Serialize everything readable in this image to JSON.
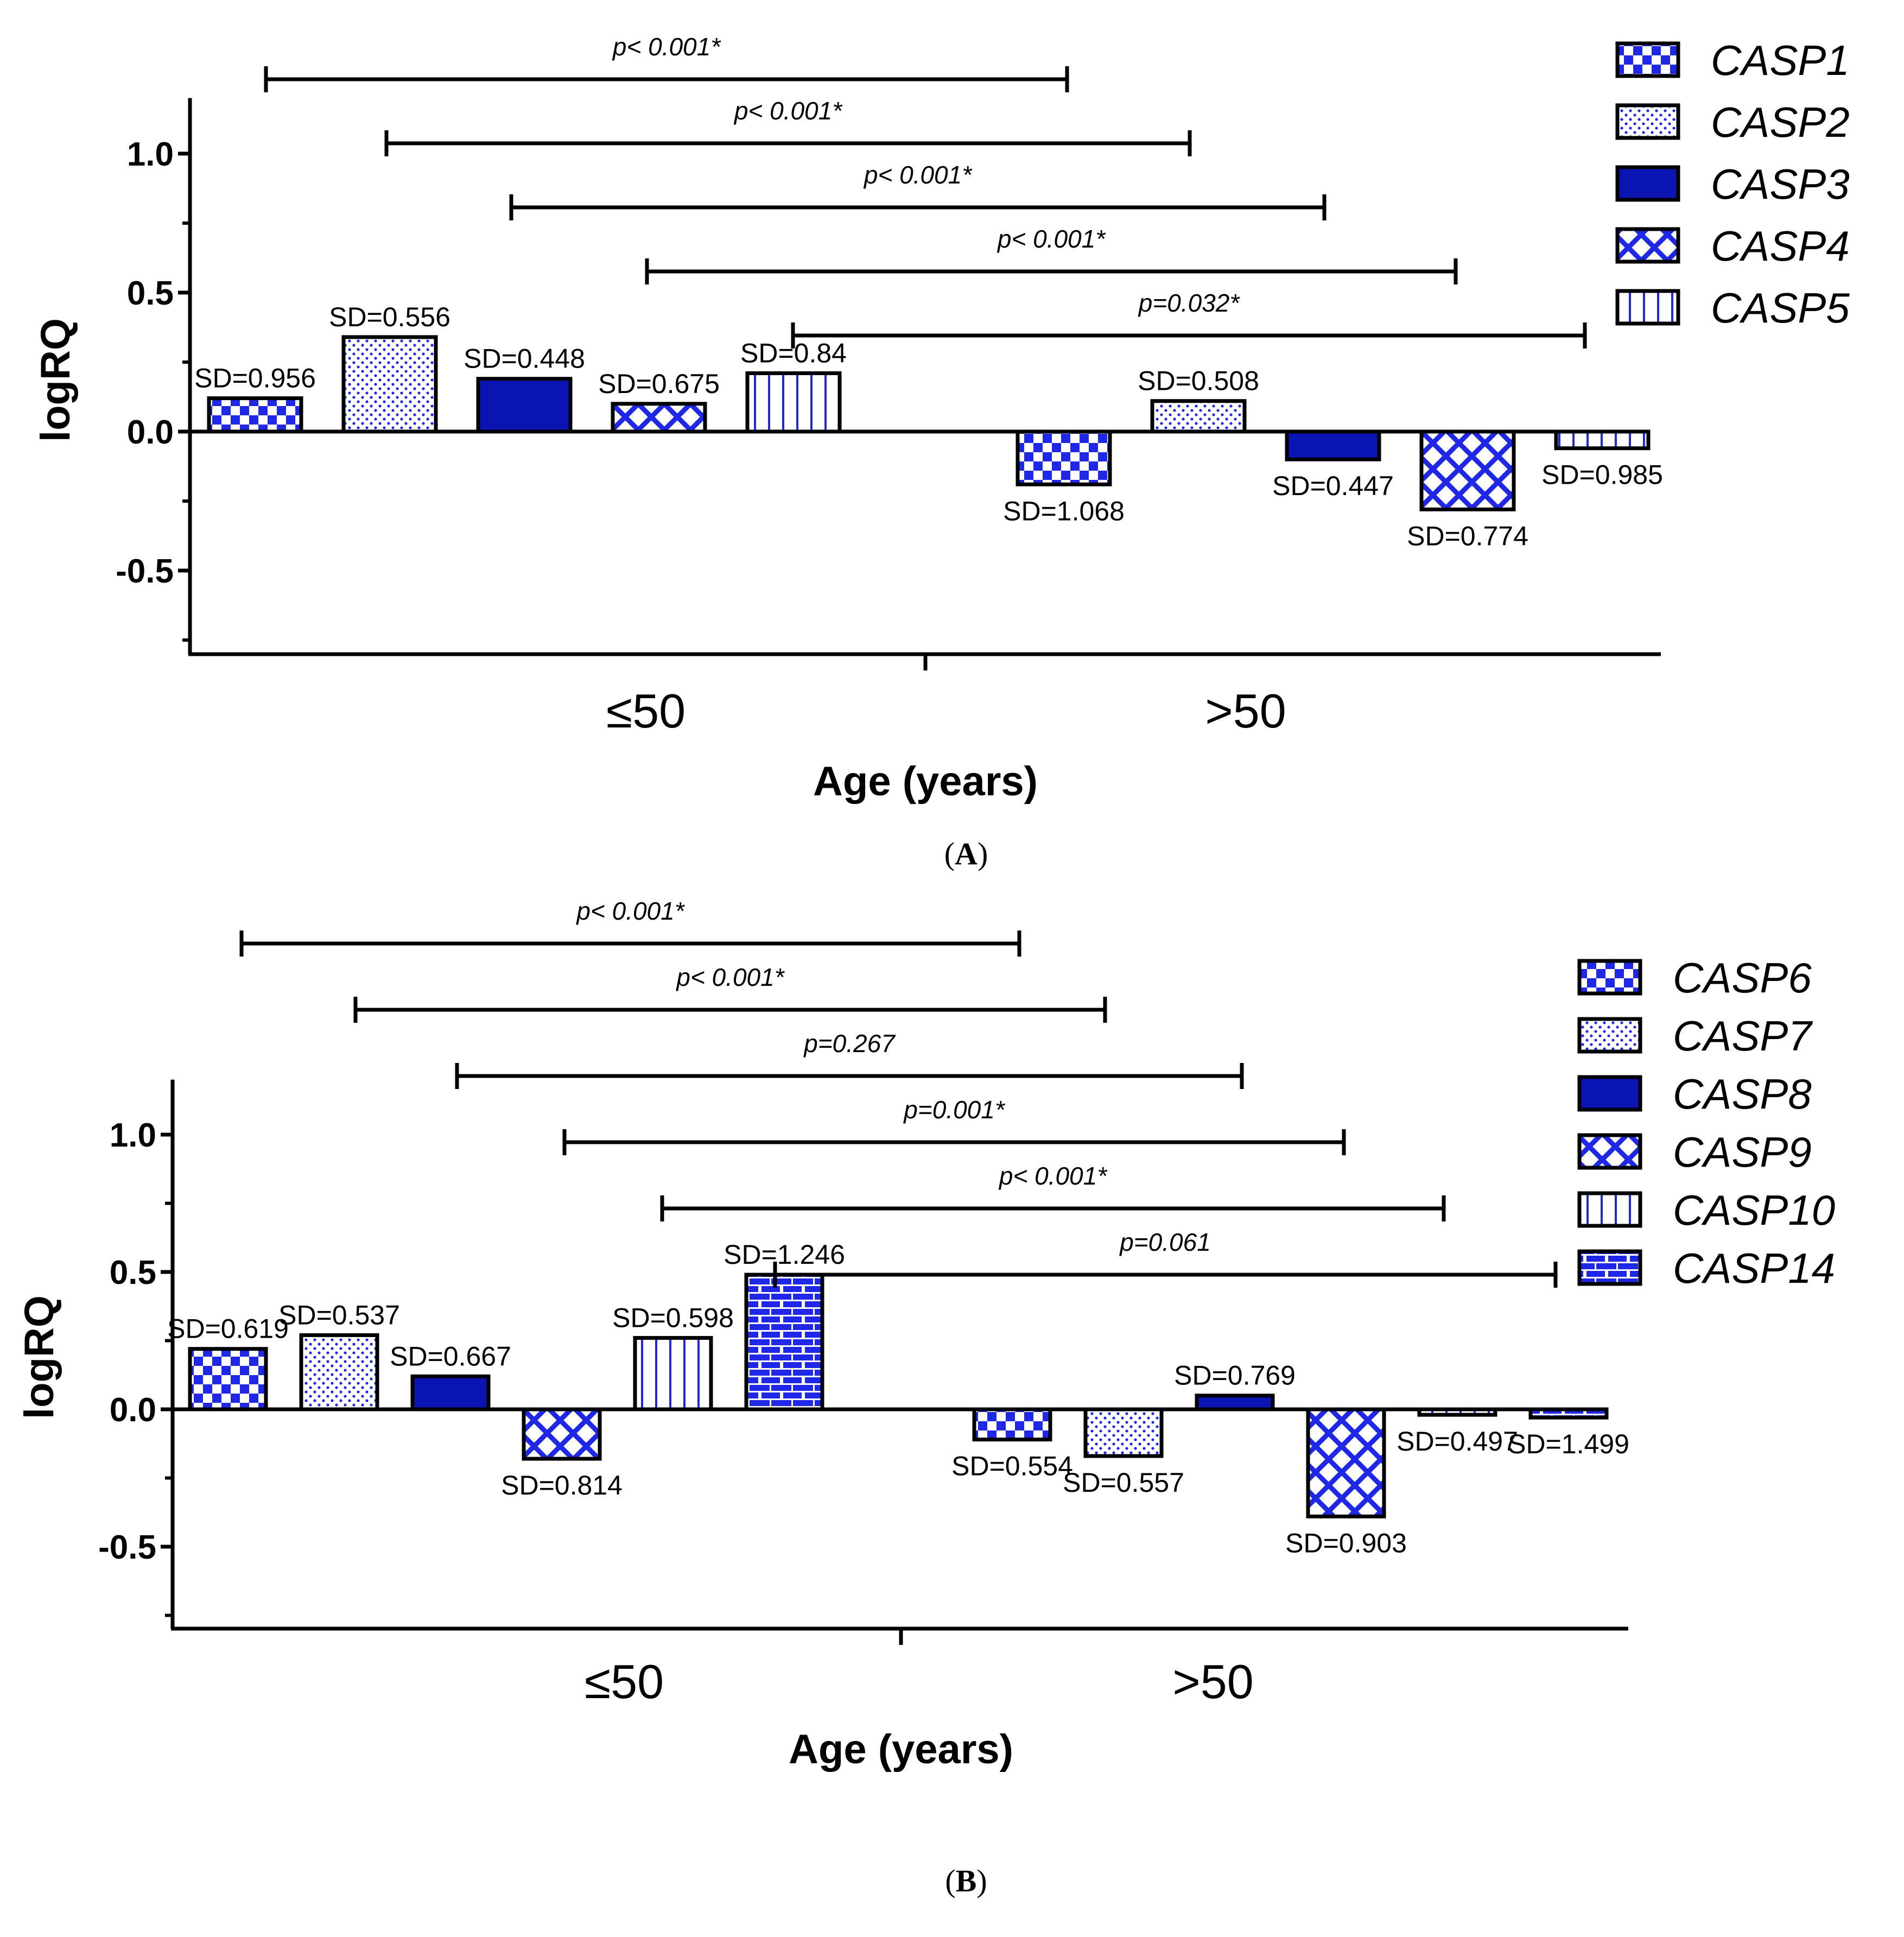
{
  "colors": {
    "bar_fill": "#0a14b4",
    "pattern": "#1e28e6",
    "axis": "#000000",
    "background": "#ffffff"
  },
  "chart_data": [
    {
      "panel_label": "A",
      "panel_letter": "A",
      "panel_left_paren": "(",
      "panel_right_paren": ")",
      "type": "bar",
      "xlabel": "Age (years)",
      "ylabel": "logRQ",
      "ylim": [
        -0.75,
        1.2
      ],
      "yticks": [
        "1.0",
        "0.5",
        "0.0",
        "-0.5"
      ],
      "ytick_values": [
        1.0,
        0.5,
        0.0,
        -0.5
      ],
      "categories": [
        "≤50",
        ">50"
      ],
      "legend_position": "right",
      "series": [
        {
          "name": "CASP1",
          "pattern": "checker",
          "values": [
            0.12,
            -0.19
          ],
          "sd_labels": [
            "SD=0.956",
            "SD=1.068"
          ]
        },
        {
          "name": "CASP2",
          "pattern": "dots",
          "values": [
            0.34,
            0.11
          ],
          "sd_labels": [
            "SD=0.556",
            "SD=0.508"
          ]
        },
        {
          "name": "CASP3",
          "pattern": "solid",
          "values": [
            0.19,
            -0.1
          ],
          "sd_labels": [
            "SD=0.448",
            "SD=0.447"
          ]
        },
        {
          "name": "CASP4",
          "pattern": "crosshatch",
          "values": [
            0.1,
            -0.28
          ],
          "sd_labels": [
            "SD=0.675",
            "SD=0.774"
          ]
        },
        {
          "name": "CASP5",
          "pattern": "vlines",
          "values": [
            0.21,
            -0.06
          ],
          "sd_labels": [
            "SD=0.84",
            "SD=0.985"
          ]
        }
      ],
      "significance": [
        {
          "label": "p< 0.001*",
          "series": "CASP1"
        },
        {
          "label": "p< 0.001*",
          "series": "CASP2"
        },
        {
          "label": "p< 0.001*",
          "series": "CASP3"
        },
        {
          "label": "p< 0.001*",
          "series": "CASP4"
        },
        {
          "label": "p=0.032*",
          "series": "CASP5"
        }
      ]
    },
    {
      "panel_label": "B",
      "panel_letter": "B",
      "panel_left_paren": "(",
      "panel_right_paren": ")",
      "type": "bar",
      "xlabel": "Age (years)",
      "ylabel": "logRQ",
      "ylim": [
        -0.78,
        1.2
      ],
      "yticks": [
        "1.0",
        "0.5",
        "0.0",
        "-0.5"
      ],
      "ytick_values": [
        1.0,
        0.5,
        0.0,
        -0.5
      ],
      "categories": [
        "≤50",
        ">50"
      ],
      "legend_position": "right",
      "series": [
        {
          "name": "CASP6",
          "pattern": "checker",
          "values": [
            0.22,
            -0.11
          ],
          "sd_labels": [
            "SD=0.619",
            "SD=0.554"
          ]
        },
        {
          "name": "CASP7",
          "pattern": "dots",
          "values": [
            0.27,
            -0.17
          ],
          "sd_labels": [
            "SD=0.537",
            "SD=0.557"
          ]
        },
        {
          "name": "CASP8",
          "pattern": "solid",
          "values": [
            0.12,
            0.05
          ],
          "sd_labels": [
            "SD=0.667",
            "SD=0.769"
          ]
        },
        {
          "name": "CASP9",
          "pattern": "crosshatch",
          "values": [
            -0.18,
            -0.39
          ],
          "sd_labels": [
            "SD=0.814",
            "SD=0.903"
          ]
        },
        {
          "name": "CASP10",
          "pattern": "vlines",
          "values": [
            0.26,
            -0.02
          ],
          "sd_labels": [
            "SD=0.598",
            "SD=0.497"
          ]
        },
        {
          "name": "CASP14",
          "pattern": "bricks",
          "values": [
            0.49,
            -0.03
          ],
          "sd_labels": [
            "SD=1.246",
            "SD=1.499"
          ]
        }
      ],
      "significance": [
        {
          "label": "p< 0.001*",
          "series": "CASP6"
        },
        {
          "label": "p< 0.001*",
          "series": "CASP7"
        },
        {
          "label": "p=0.267",
          "series": "CASP8"
        },
        {
          "label": "p=0.001*",
          "series": "CASP9"
        },
        {
          "label": "p< 0.001*",
          "series": "CASP10"
        },
        {
          "label": "p=0.061",
          "series": "CASP14"
        }
      ]
    }
  ]
}
